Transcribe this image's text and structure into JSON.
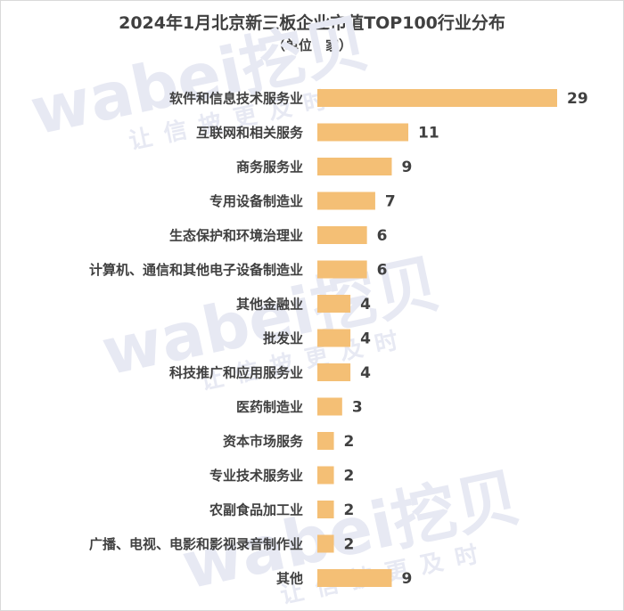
{
  "colors": {
    "bar": "#f4bf75",
    "text": "#404040"
  },
  "watermark": {
    "brand": "wabei挖贝",
    "slogan": "让信披更及时"
  },
  "chart_data": {
    "type": "bar",
    "orientation": "horizontal",
    "title": "2024年1月北京新三板企业市值TOP100行业分布",
    "subtitle": "（单位：家）",
    "categories": [
      "软件和信息技术服务业",
      "互联网和相关服务",
      "商务服务业",
      "专用设备制造业",
      "生态保护和环境治理业",
      "计算机、通信和其他电子设备制造业",
      "其他金融业",
      "批发业",
      "科技推广和应用服务业",
      "医药制造业",
      "资本市场服务",
      "专业技术服务业",
      "农副食品加工业",
      "广播、电视、电影和影视录音制作业",
      "其他"
    ],
    "values": [
      29,
      11,
      9,
      7,
      6,
      6,
      4,
      4,
      4,
      3,
      2,
      2,
      2,
      2,
      9
    ],
    "xlim": [
      0,
      29
    ],
    "data_labels": true,
    "grid": false,
    "legend": false
  }
}
